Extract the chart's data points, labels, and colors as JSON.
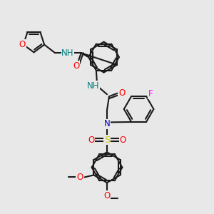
{
  "bg_color": "#e8e8e8",
  "bond_color": "#1a1a1a",
  "bond_width": 1.5,
  "atom_colors": {
    "O": "#ff0000",
    "N": "#0000cd",
    "S": "#cccc00",
    "F": "#ff00ff",
    "H": "#008080",
    "C": "#1a1a1a"
  },
  "font_size": 8.5,
  "fig_size": [
    3.0,
    3.0
  ],
  "dpi": 100
}
